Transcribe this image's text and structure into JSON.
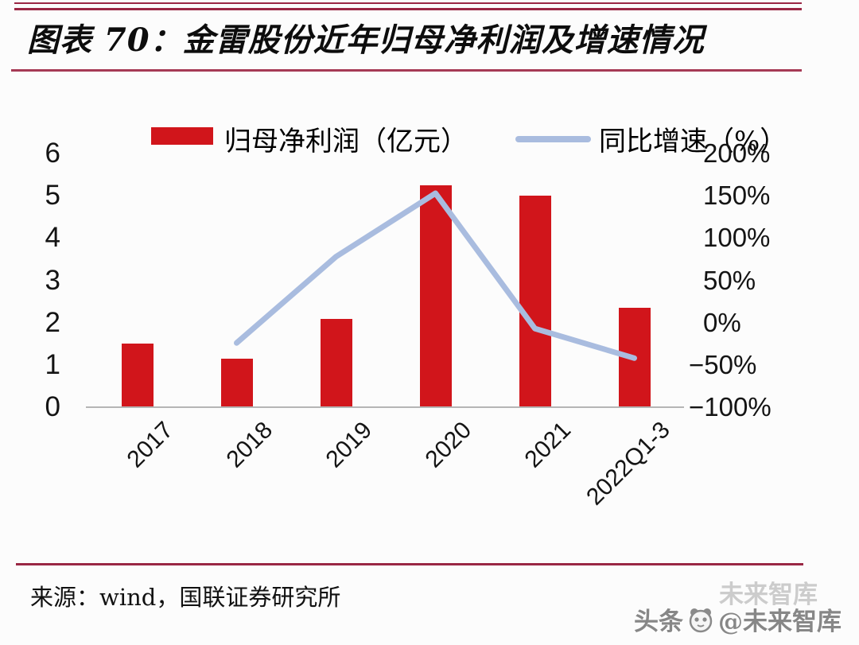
{
  "figure": {
    "title": "图表 70：金雷股份近年归母净利润及增速情况",
    "source": "来源：wind，国联证券研究所",
    "watermark": {
      "prefix": "头条",
      "handle": "@未来智库",
      "ghost": "未来智库"
    }
  },
  "chart_data": {
    "type": "bar+line",
    "title": "金雷股份近年归母净利润及增速情况",
    "categories": [
      "2017",
      "2018",
      "2019",
      "2020",
      "2021",
      "2022Q1-3"
    ],
    "series": [
      {
        "name": "归母净利润（亿元）",
        "type": "bar",
        "axis": "left",
        "color": "#d1151b",
        "values": [
          1.5,
          1.15,
          2.08,
          5.25,
          5.0,
          2.36
        ]
      },
      {
        "name": "同比增速（%）",
        "type": "line",
        "axis": "right",
        "unit": "%",
        "color": "#a9bcdf",
        "values": [
          null,
          -24,
          78,
          153,
          -7,
          -42
        ]
      }
    ],
    "legend": [
      {
        "label": "归母净利润（亿元）",
        "marker": "bar",
        "color": "#d1151b"
      },
      {
        "label": "同比增速（%）",
        "marker": "line",
        "color": "#a9bcdf"
      }
    ],
    "left_axis": {
      "range": [
        0,
        6
      ],
      "ticks": [
        6,
        5,
        4,
        3,
        2,
        1,
        0
      ]
    },
    "right_axis": {
      "range": [
        -100,
        200
      ],
      "ticks": [
        {
          "label": "200%",
          "value": 200
        },
        {
          "label": "150%",
          "value": 150
        },
        {
          "label": "100%",
          "value": 100
        },
        {
          "label": "50%",
          "value": 50
        },
        {
          "label": "0%",
          "value": 0
        },
        {
          "label": "−50%",
          "value": -50
        },
        {
          "label": "−100%",
          "value": -100
        }
      ]
    },
    "grid": false,
    "legend_position": "top"
  },
  "colors": {
    "bar": "#d1151b",
    "line": "#a9bcdf",
    "rule": "#9a2744",
    "axis_line": "#b5b5b5",
    "watermark": "#878787",
    "watermark_ghost": "#cccccc"
  }
}
